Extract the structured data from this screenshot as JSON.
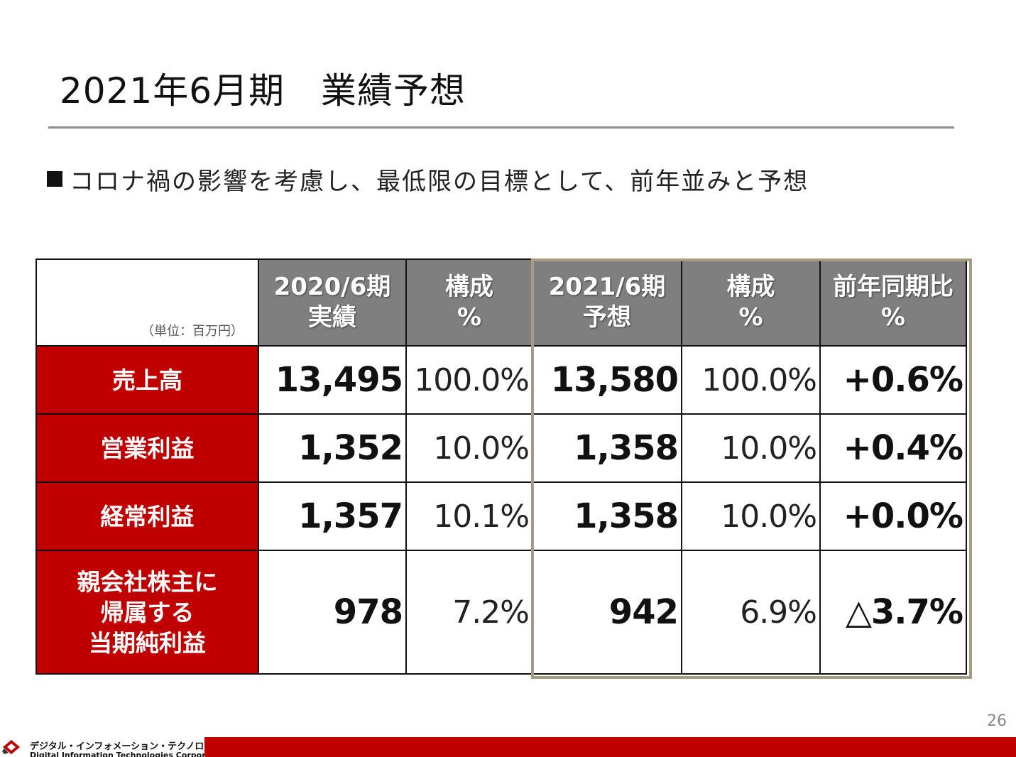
{
  "title": "2021年6月期　業績予想",
  "bullet": "コロナ禍の影響を考慮し、最低限の目標として、前年並みと予想",
  "table": {
    "unit": "（単位：百万円）",
    "headers": [
      {
        "line1": "2020/6期",
        "line2": "実績"
      },
      {
        "line1": "構成",
        "line2": "%"
      },
      {
        "line1": "2021/6期",
        "line2": "予想"
      },
      {
        "line1": "構成",
        "line2": "%"
      },
      {
        "line1": "前年同期比",
        "line2": "%"
      }
    ],
    "rows": [
      {
        "label": [
          "売上高"
        ],
        "actual": "13,495",
        "actual_pct": "100.0%",
        "forecast": "13,580",
        "forecast_pct": "100.0%",
        "yoy": "+0.6%"
      },
      {
        "label": [
          "営業利益"
        ],
        "actual": "1,352",
        "actual_pct": "10.0%",
        "forecast": "1,358",
        "forecast_pct": "10.0%",
        "yoy": "+0.4%"
      },
      {
        "label": [
          "経常利益"
        ],
        "actual": "1,357",
        "actual_pct": "10.1%",
        "forecast": "1,358",
        "forecast_pct": "10.0%",
        "yoy": "+0.0%"
      },
      {
        "label": [
          "親会社株主に",
          "帰属する",
          "当期純利益"
        ],
        "actual": "978",
        "actual_pct": "7.2%",
        "forecast": "942",
        "forecast_pct": "6.9%",
        "yoy": "△3.7%"
      }
    ]
  },
  "page_number": "26",
  "footer": {
    "company_jp": "デジタル・インフォメーション・テクノロジー株式会社",
    "company_en": "Digital Information Technologies Corporation",
    "accent_color": "#c00000",
    "logo_icon": "company-logo-icon"
  }
}
